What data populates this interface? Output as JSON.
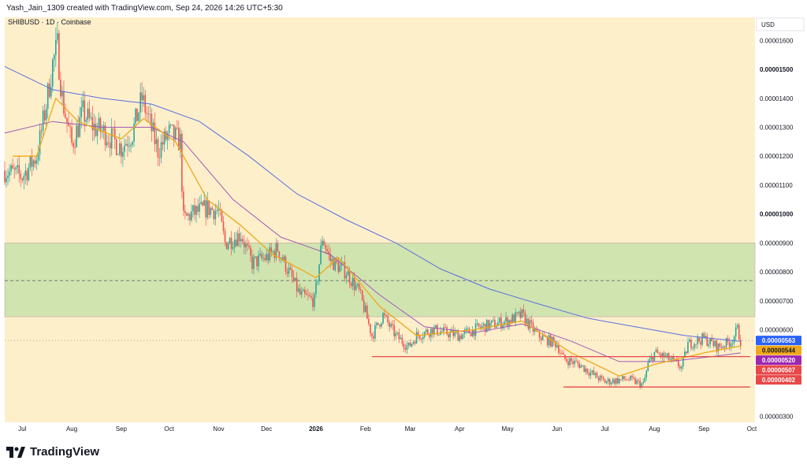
{
  "header": {
    "attribution": "Yash_Jain_1309 created with TradingView.com, Sep 24, 2026 14:26 UTC+5:30"
  },
  "footer": {
    "brand": "TradingView"
  },
  "colors": {
    "background": "#fdefca",
    "up": "#26a69a",
    "down": "#ef5350",
    "ma_fast": "#f0a818",
    "ma_mid": "#a05ab4",
    "ma_slow": "#5a6ee0",
    "zone": "#d0e4b0",
    "support": "#e84848"
  },
  "chart_data": {
    "type": "candlestick",
    "title": "SHIBUSD · 1D · Coinbase",
    "currency": "USD",
    "ylim": [
      2.8e-06,
      1.68e-05
    ],
    "grid": false,
    "y_ticks": [
      "0.00001600",
      "0.00001500",
      "0.00001400",
      "0.00001300",
      "0.00001200",
      "0.00001100",
      "0.00001000",
      "0.00000900",
      "0.00000800",
      "0.00000700",
      "0.00000600",
      "0.00000300"
    ],
    "y_tick_values": [
      1.6e-05,
      1.5e-05,
      1.4e-05,
      1.3e-05,
      1.2e-05,
      1.1e-05,
      1e-05,
      9e-06,
      8e-06,
      7e-06,
      6e-06,
      3e-06
    ],
    "x_ticks": [
      "Jul",
      "Aug",
      "Sep",
      "Oct",
      "Nov",
      "Dec",
      "2026",
      "Feb",
      "Mar",
      "Apr",
      "May",
      "Jun",
      "Jul",
      "Aug",
      "Sep",
      "Oct"
    ],
    "x_tick_dates": [
      "2025-07-01",
      "2025-08-01",
      "2025-09-01",
      "2025-10-01",
      "2025-11-01",
      "2025-12-01",
      "2026-01-01",
      "2026-02-01",
      "2026-03-01",
      "2026-04-01",
      "2026-05-01",
      "2026-06-01",
      "2026-07-01",
      "2026-08-01",
      "2026-09-01",
      "2026-10-01"
    ],
    "x_range": [
      "2025-06-20",
      "2026-10-03"
    ],
    "closes": [
      {
        "date": "2025-06-20",
        "value": 1.15e-05
      },
      {
        "date": "2025-07-01",
        "value": 1.13e-05
      },
      {
        "date": "2025-07-10",
        "value": 1.2e-05
      },
      {
        "date": "2025-07-16",
        "value": 1.38e-05
      },
      {
        "date": "2025-07-20",
        "value": 1.52e-05
      },
      {
        "date": "2025-07-23",
        "value": 1.58e-05
      },
      {
        "date": "2025-07-26",
        "value": 1.4e-05
      },
      {
        "date": "2025-08-01",
        "value": 1.24e-05
      },
      {
        "date": "2025-08-08",
        "value": 1.35e-05
      },
      {
        "date": "2025-08-15",
        "value": 1.3e-05
      },
      {
        "date": "2025-08-22",
        "value": 1.28e-05
      },
      {
        "date": "2025-09-01",
        "value": 1.23e-05
      },
      {
        "date": "2025-09-08",
        "value": 1.28e-05
      },
      {
        "date": "2025-09-14",
        "value": 1.4e-05
      },
      {
        "date": "2025-09-18",
        "value": 1.33e-05
      },
      {
        "date": "2025-09-24",
        "value": 1.22e-05
      },
      {
        "date": "2025-10-01",
        "value": 1.28e-05
      },
      {
        "date": "2025-10-08",
        "value": 1.25e-05
      },
      {
        "date": "2025-10-10",
        "value": 9.8e-06
      },
      {
        "date": "2025-10-15",
        "value": 1e-05
      },
      {
        "date": "2025-10-25",
        "value": 1.02e-05
      },
      {
        "date": "2025-11-01",
        "value": 1.01e-05
      },
      {
        "date": "2025-11-05",
        "value": 9e-06
      },
      {
        "date": "2025-11-15",
        "value": 9.3e-06
      },
      {
        "date": "2025-11-22",
        "value": 8.3e-06
      },
      {
        "date": "2025-12-01",
        "value": 8.5e-06
      },
      {
        "date": "2025-12-08",
        "value": 8.8e-06
      },
      {
        "date": "2025-12-15",
        "value": 8e-06
      },
      {
        "date": "2025-12-22",
        "value": 7.2e-06
      },
      {
        "date": "2025-12-31",
        "value": 7e-06
      },
      {
        "date": "2026-01-03",
        "value": 8.3e-06
      },
      {
        "date": "2026-01-05",
        "value": 9.2e-06
      },
      {
        "date": "2026-01-10",
        "value": 8.4e-06
      },
      {
        "date": "2026-01-20",
        "value": 8e-06
      },
      {
        "date": "2026-01-28",
        "value": 7.3e-06
      },
      {
        "date": "2026-02-01",
        "value": 6.6e-06
      },
      {
        "date": "2026-02-05",
        "value": 5.8e-06
      },
      {
        "date": "2026-02-12",
        "value": 6.5e-06
      },
      {
        "date": "2026-02-20",
        "value": 5.8e-06
      },
      {
        "date": "2026-02-28",
        "value": 5.4e-06
      },
      {
        "date": "2026-03-05",
        "value": 5.8e-06
      },
      {
        "date": "2026-03-15",
        "value": 6e-06
      },
      {
        "date": "2026-04-01",
        "value": 5.8e-06
      },
      {
        "date": "2026-04-15",
        "value": 6.1e-06
      },
      {
        "date": "2026-05-01",
        "value": 6.3e-06
      },
      {
        "date": "2026-05-10",
        "value": 6.5e-06
      },
      {
        "date": "2026-05-20",
        "value": 5.8e-06
      },
      {
        "date": "2026-06-01",
        "value": 5.5e-06
      },
      {
        "date": "2026-06-05",
        "value": 5e-06
      },
      {
        "date": "2026-06-15",
        "value": 4.8e-06
      },
      {
        "date": "2026-06-25",
        "value": 4.4e-06
      },
      {
        "date": "2026-07-01",
        "value": 4.2e-06
      },
      {
        "date": "2026-07-15",
        "value": 4.3e-06
      },
      {
        "date": "2026-07-25",
        "value": 4.1e-06
      },
      {
        "date": "2026-07-28",
        "value": 4.8e-06
      },
      {
        "date": "2026-08-01",
        "value": 5.2e-06
      },
      {
        "date": "2026-08-10",
        "value": 5e-06
      },
      {
        "date": "2026-08-18",
        "value": 4.7e-06
      },
      {
        "date": "2026-08-22",
        "value": 5.5e-06
      },
      {
        "date": "2026-09-01",
        "value": 5.7e-06
      },
      {
        "date": "2026-09-10",
        "value": 5.4e-06
      },
      {
        "date": "2026-09-18",
        "value": 5.6e-06
      },
      {
        "date": "2026-09-22",
        "value": 6e-06
      },
      {
        "date": "2026-09-24",
        "value": 5.63e-06
      }
    ],
    "ma_fast": [
      {
        "date": "2025-06-25",
        "value": 1.2e-05
      },
      {
        "date": "2025-07-10",
        "value": 1.2e-05
      },
      {
        "date": "2025-07-22",
        "value": 1.4e-05
      },
      {
        "date": "2025-08-05",
        "value": 1.32e-05
      },
      {
        "date": "2025-09-01",
        "value": 1.26e-05
      },
      {
        "date": "2025-09-15",
        "value": 1.33e-05
      },
      {
        "date": "2025-10-05",
        "value": 1.25e-05
      },
      {
        "date": "2025-10-25",
        "value": 1.05e-05
      },
      {
        "date": "2025-11-15",
        "value": 9.6e-06
      },
      {
        "date": "2025-12-05",
        "value": 8.6e-06
      },
      {
        "date": "2026-01-01",
        "value": 7.8e-06
      },
      {
        "date": "2026-01-15",
        "value": 8.5e-06
      },
      {
        "date": "2026-02-10",
        "value": 6.8e-06
      },
      {
        "date": "2026-03-05",
        "value": 5.8e-06
      },
      {
        "date": "2026-04-10",
        "value": 6e-06
      },
      {
        "date": "2026-05-10",
        "value": 6.3e-06
      },
      {
        "date": "2026-06-10",
        "value": 5.2e-06
      },
      {
        "date": "2026-07-10",
        "value": 4.4e-06
      },
      {
        "date": "2026-08-01",
        "value": 4.8e-06
      },
      {
        "date": "2026-09-01",
        "value": 5.2e-06
      },
      {
        "date": "2026-09-24",
        "value": 5.44e-06
      }
    ],
    "ma_mid": [
      {
        "date": "2025-06-20",
        "value": 1.28e-05
      },
      {
        "date": "2025-07-20",
        "value": 1.32e-05
      },
      {
        "date": "2025-08-20",
        "value": 1.3e-05
      },
      {
        "date": "2025-09-20",
        "value": 1.3e-05
      },
      {
        "date": "2025-10-10",
        "value": 1.25e-05
      },
      {
        "date": "2025-11-10",
        "value": 1.05e-05
      },
      {
        "date": "2025-12-10",
        "value": 9.2e-06
      },
      {
        "date": "2026-01-10",
        "value": 8.6e-06
      },
      {
        "date": "2026-02-10",
        "value": 7.2e-06
      },
      {
        "date": "2026-03-10",
        "value": 6.1e-06
      },
      {
        "date": "2026-04-10",
        "value": 5.9e-06
      },
      {
        "date": "2026-05-10",
        "value": 6.2e-06
      },
      {
        "date": "2026-06-10",
        "value": 5.6e-06
      },
      {
        "date": "2026-07-10",
        "value": 4.9e-06
      },
      {
        "date": "2026-08-10",
        "value": 4.9e-06
      },
      {
        "date": "2026-09-10",
        "value": 5.1e-06
      },
      {
        "date": "2026-09-24",
        "value": 5.2e-06
      }
    ],
    "ma_slow": [
      {
        "date": "2025-06-20",
        "value": 1.51e-05
      },
      {
        "date": "2025-07-20",
        "value": 1.43e-05
      },
      {
        "date": "2025-08-20",
        "value": 1.4e-05
      },
      {
        "date": "2025-09-20",
        "value": 1.38e-05
      },
      {
        "date": "2025-10-20",
        "value": 1.32e-05
      },
      {
        "date": "2025-11-20",
        "value": 1.2e-05
      },
      {
        "date": "2025-12-20",
        "value": 1.07e-05
      },
      {
        "date": "2026-01-20",
        "value": 9.8e-06
      },
      {
        "date": "2026-02-20",
        "value": 9e-06
      },
      {
        "date": "2026-03-20",
        "value": 8.1e-06
      },
      {
        "date": "2026-04-20",
        "value": 7.4e-06
      },
      {
        "date": "2026-05-20",
        "value": 6.9e-06
      },
      {
        "date": "2026-06-20",
        "value": 6.4e-06
      },
      {
        "date": "2026-07-20",
        "value": 6.1e-06
      },
      {
        "date": "2026-08-20",
        "value": 5.8e-06
      },
      {
        "date": "2026-09-24",
        "value": 5.6e-06
      }
    ],
    "zone": {
      "from": 6.45e-06,
      "to": 9e-06,
      "mid": 7.7e-06
    },
    "support_lines": [
      {
        "from": "2026-02-05",
        "to": "2026-09-30",
        "value": 5.07e-06
      },
      {
        "from": "2026-06-05",
        "to": "2026-09-30",
        "value": 4.02e-06
      }
    ],
    "price_badges": [
      {
        "label": "0.00000563",
        "value": 5.63e-06,
        "color": "#2962ff"
      },
      {
        "label": "0.00000544",
        "value": 5.44e-06,
        "color": "#f0a818"
      },
      {
        "label": "0.00000520",
        "value": 5.2e-06,
        "color": "#9c27b0"
      },
      {
        "label": "0.00000507",
        "value": 5.07e-06,
        "color": "#e84848"
      },
      {
        "label": "0.00000402",
        "value": 4.02e-06,
        "color": "#e84848"
      }
    ]
  }
}
